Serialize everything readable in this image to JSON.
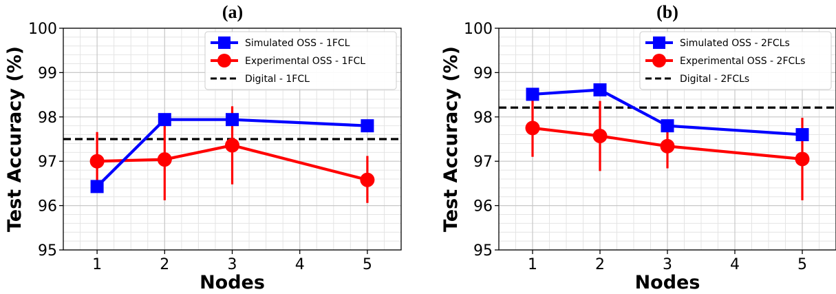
{
  "chart_data": [
    {
      "type": "line",
      "panel_label": "(a)",
      "xlabel": "Nodes",
      "ylabel": "Test Accuracy (%)",
      "xlim": [
        0.5,
        5.5
      ],
      "ylim": [
        95,
        100
      ],
      "xticks": [
        "1",
        "2",
        "3",
        "4",
        "5"
      ],
      "yticks": [
        "95",
        "96",
        "97",
        "98",
        "99",
        "100"
      ],
      "grid": true,
      "legend_position": "top-right",
      "series": [
        {
          "name": "Simulated OSS - 1FCL",
          "color": "#0000ff",
          "marker": "square",
          "x": [
            1,
            2,
            3,
            5
          ],
          "y": [
            96.43,
            97.94,
            97.94,
            97.8
          ]
        },
        {
          "name": "Experimental OSS - 1FCL",
          "color": "#ff0000",
          "marker": "circle",
          "x": [
            1,
            2,
            3,
            5
          ],
          "y": [
            97.0,
            97.04,
            97.36,
            96.58
          ],
          "err_low": [
            96.35,
            96.12,
            96.48,
            96.06
          ],
          "err_high": [
            97.66,
            97.98,
            98.24,
            97.12
          ]
        }
      ],
      "reference_line": {
        "name": "Digital - 1FCL",
        "color": "#000000",
        "style": "dashed",
        "y": 97.5
      }
    },
    {
      "type": "line",
      "panel_label": "(b)",
      "xlabel": "Nodes",
      "ylabel": "Test Accuracy (%)",
      "xlim": [
        0.5,
        5.5
      ],
      "ylim": [
        95,
        100
      ],
      "xticks": [
        "1",
        "2",
        "3",
        "4",
        "5"
      ],
      "yticks": [
        "95",
        "96",
        "97",
        "98",
        "99",
        "100"
      ],
      "grid": true,
      "legend_position": "top-right",
      "series": [
        {
          "name": "Simulated OSS - 2FCLs",
          "color": "#0000ff",
          "marker": "square",
          "x": [
            1,
            2,
            3,
            5
          ],
          "y": [
            98.51,
            98.61,
            97.8,
            97.6
          ]
        },
        {
          "name": "Experimental OSS - 2FCLs",
          "color": "#ff0000",
          "marker": "circle",
          "x": [
            1,
            2,
            3,
            5
          ],
          "y": [
            97.75,
            97.57,
            97.34,
            97.05
          ],
          "err_low": [
            97.1,
            96.78,
            96.84,
            96.12
          ],
          "err_high": [
            98.41,
            98.36,
            97.84,
            97.98
          ]
        }
      ],
      "reference_line": {
        "name": "Digital - 2FCLs",
        "color": "#000000",
        "style": "dashed",
        "y": 98.21
      }
    }
  ]
}
